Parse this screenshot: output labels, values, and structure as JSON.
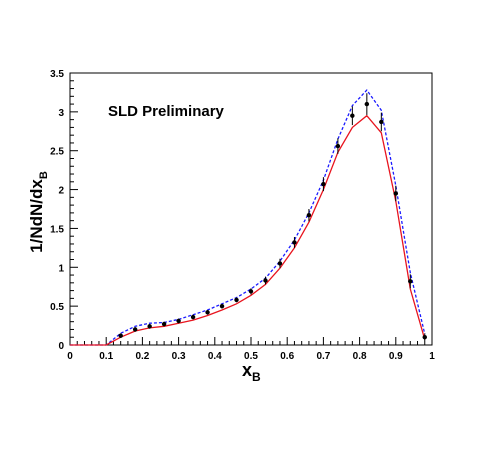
{
  "chart_data": {
    "type": "line",
    "annotation": "SLD Preliminary",
    "xlabel": {
      "main": "x",
      "sub": "B"
    },
    "ylabel": {
      "main": "1/NdN/dx",
      "sub": "B"
    },
    "xlim": [
      0,
      1
    ],
    "ylim": [
      0,
      3.5
    ],
    "x_ticks": [
      "0",
      "0.1",
      "0.2",
      "0.3",
      "0.4",
      "0.5",
      "0.6",
      "0.7",
      "0.8",
      "0.9",
      "1"
    ],
    "y_ticks": [
      "0",
      "0.5",
      "1",
      "1.5",
      "2",
      "2.5",
      "3",
      "3.5"
    ],
    "grid": false,
    "series": [
      {
        "kind": "points_with_errors",
        "color": "#000000",
        "x": [
          0.14,
          0.18,
          0.22,
          0.26,
          0.3,
          0.34,
          0.38,
          0.42,
          0.46,
          0.5,
          0.54,
          0.58,
          0.62,
          0.66,
          0.7,
          0.74,
          0.78,
          0.82,
          0.86,
          0.9,
          0.94,
          0.98
        ],
        "y": [
          0.12,
          0.2,
          0.24,
          0.27,
          0.31,
          0.36,
          0.42,
          0.5,
          0.58,
          0.69,
          0.83,
          1.05,
          1.32,
          1.67,
          2.07,
          2.56,
          2.95,
          3.1,
          2.87,
          1.95,
          0.82,
          0.1
        ],
        "err": [
          0.03,
          0.03,
          0.03,
          0.03,
          0.03,
          0.03,
          0.03,
          0.03,
          0.03,
          0.04,
          0.05,
          0.06,
          0.07,
          0.08,
          0.09,
          0.1,
          0.12,
          0.14,
          0.12,
          0.1,
          0.09,
          0.05
        ]
      },
      {
        "kind": "line",
        "style": "dashed",
        "color": "#1a1aff",
        "x": [
          0.0,
          0.1,
          0.14,
          0.18,
          0.22,
          0.26,
          0.3,
          0.34,
          0.38,
          0.42,
          0.46,
          0.5,
          0.54,
          0.58,
          0.62,
          0.66,
          0.7,
          0.74,
          0.78,
          0.82,
          0.86,
          0.9,
          0.94,
          0.98
        ],
        "y": [
          0.0,
          0.0,
          0.15,
          0.24,
          0.28,
          0.29,
          0.33,
          0.39,
          0.45,
          0.53,
          0.61,
          0.72,
          0.86,
          1.08,
          1.35,
          1.7,
          2.12,
          2.65,
          3.08,
          3.28,
          3.02,
          2.05,
          0.93,
          0.14
        ]
      },
      {
        "kind": "line",
        "style": "solid",
        "color": "#e8141e",
        "x": [
          0.0,
          0.1,
          0.14,
          0.18,
          0.22,
          0.26,
          0.3,
          0.34,
          0.38,
          0.42,
          0.46,
          0.5,
          0.54,
          0.58,
          0.62,
          0.66,
          0.7,
          0.74,
          0.78,
          0.82,
          0.86,
          0.9,
          0.94,
          0.98
        ],
        "y": [
          0.0,
          0.0,
          0.1,
          0.18,
          0.22,
          0.24,
          0.28,
          0.32,
          0.38,
          0.45,
          0.53,
          0.64,
          0.78,
          0.99,
          1.25,
          1.58,
          2.0,
          2.48,
          2.8,
          2.95,
          2.73,
          1.85,
          0.72,
          0.07
        ]
      }
    ]
  }
}
